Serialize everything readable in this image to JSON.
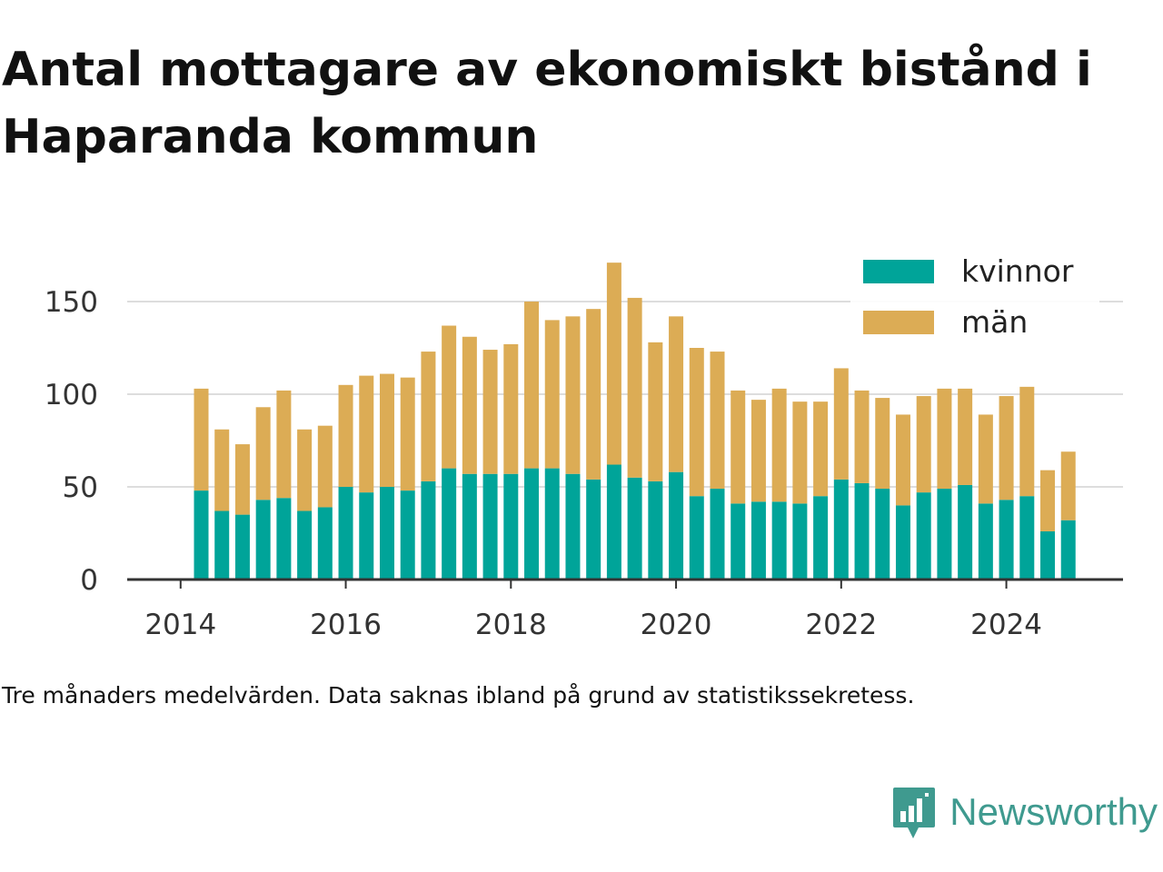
{
  "title": "Antal mottagare av ekonomiskt bistånd i Haparanda kommun",
  "caption": "Tre månaders medelvärden. Data saknas ibland på grund av statistikssekretess.",
  "brand": {
    "name": "Newsworthy",
    "icon": "newsworthy-logo-icon",
    "color": "#3f9a8f"
  },
  "chart_data": {
    "type": "bar",
    "stacked": true,
    "x_ticks": [
      "2014",
      "2016",
      "2018",
      "2020",
      "2022",
      "2024"
    ],
    "y_ticks": [
      "0",
      "50",
      "100",
      "150"
    ],
    "ylim": [
      0,
      175
    ],
    "grid": true,
    "legend_position": "top-right",
    "categories": [
      "2014-Q2",
      "2014-Q3",
      "2014-Q4",
      "2015-Q1",
      "2015-Q2",
      "2015-Q3",
      "2015-Q4",
      "2016-Q1",
      "2016-Q2",
      "2016-Q3",
      "2016-Q4",
      "2017-Q1",
      "2017-Q2",
      "2017-Q3",
      "2017-Q4",
      "2018-Q1",
      "2018-Q2",
      "2018-Q3",
      "2018-Q4",
      "2019-Q1",
      "2019-Q2",
      "2019-Q3",
      "2019-Q4",
      "2020-Q1",
      "2020-Q2",
      "2020-Q3",
      "2020-Q4",
      "2021-Q1",
      "2021-Q2",
      "2021-Q3",
      "2021-Q4",
      "2022-Q1",
      "2022-Q2",
      "2022-Q3",
      "2022-Q4",
      "2023-Q1",
      "2023-Q2",
      "2023-Q3",
      "2023-Q4",
      "2024-Q1",
      "2024-Q2",
      "2024-Q3",
      "2024-Q4"
    ],
    "series": [
      {
        "name": "kvinnor",
        "color": "#00a499",
        "values": [
          48,
          37,
          35,
          43,
          44,
          37,
          39,
          50,
          47,
          50,
          48,
          53,
          60,
          57,
          57,
          57,
          60,
          60,
          57,
          54,
          62,
          55,
          53,
          58,
          45,
          49,
          41,
          42,
          42,
          41,
          45,
          54,
          52,
          49,
          40,
          47,
          49,
          51,
          41,
          43,
          45,
          26,
          32
        ]
      },
      {
        "name": "män",
        "color": "#dcac55",
        "values": [
          55,
          44,
          38,
          50,
          58,
          44,
          44,
          55,
          63,
          61,
          61,
          70,
          77,
          74,
          67,
          70,
          90,
          80,
          85,
          92,
          109,
          97,
          75,
          84,
          80,
          74,
          61,
          55,
          61,
          55,
          51,
          60,
          50,
          49,
          49,
          52,
          54,
          52,
          48,
          56,
          59,
          33,
          37
        ]
      }
    ]
  }
}
